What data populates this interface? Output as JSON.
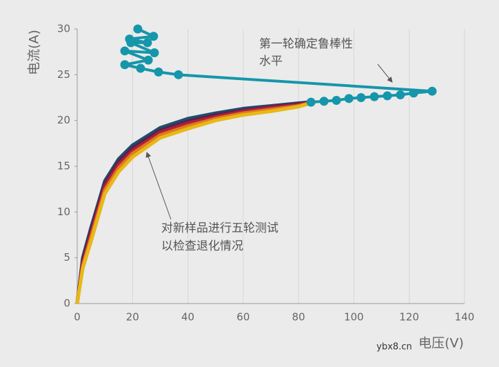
{
  "chart_data": {
    "type": "line",
    "xlabel": "电压(V)",
    "ylabel": "电流(A)",
    "xlim": [
      0,
      140
    ],
    "xticks": [
      0,
      20,
      40,
      60,
      80,
      100,
      120,
      140
    ],
    "ylim": [
      0,
      30
    ],
    "yticks": [
      0,
      5,
      10,
      15,
      20,
      25,
      30
    ],
    "grid": true,
    "annotations": [
      [
        "第一轮确定鲁棒性",
        "水平"
      ],
      [
        "对新样品进行五轮测试",
        "以检查退化情况"
      ]
    ],
    "watermark": "ybx8.cn",
    "series": [
      {
        "color": "#1d4f6e",
        "x": [
          0,
          2,
          5,
          10,
          15,
          20,
          30,
          40,
          50,
          60,
          70,
          80,
          84
        ],
        "values": [
          0,
          5,
          8.3,
          13.4,
          15.8,
          17.3,
          19.2,
          20.2,
          20.8,
          21.3,
          21.6,
          21.9,
          22
        ]
      },
      {
        "color": "#5c1f4d",
        "x": [
          0,
          2,
          5,
          10,
          15,
          20,
          30,
          40,
          50,
          60,
          70,
          80,
          84
        ],
        "values": [
          0,
          4.7,
          8.0,
          13.1,
          15.5,
          17.0,
          18.9,
          19.9,
          20.6,
          21.1,
          21.5,
          21.8,
          22
        ]
      },
      {
        "color": "#b0203a",
        "x": [
          0,
          2,
          5,
          10,
          15,
          20,
          30,
          40,
          50,
          60,
          70,
          80,
          84
        ],
        "values": [
          0,
          4.4,
          7.6,
          12.8,
          15.2,
          16.7,
          18.7,
          19.7,
          20.4,
          21.0,
          21.4,
          21.7,
          21.95
        ]
      },
      {
        "color": "#e07b1a",
        "x": [
          0,
          2,
          5,
          10,
          15,
          20,
          30,
          40,
          50,
          60,
          70,
          80,
          84
        ],
        "values": [
          0,
          4.1,
          7.2,
          12.4,
          14.8,
          16.4,
          18.4,
          19.4,
          20.2,
          20.8,
          21.2,
          21.6,
          21.9
        ]
      },
      {
        "color": "#e8b818",
        "x": [
          0,
          2,
          5,
          10,
          15,
          20,
          30,
          40,
          50,
          60,
          70,
          80,
          84
        ],
        "values": [
          0,
          3.8,
          6.8,
          12.0,
          14.4,
          16.0,
          18.1,
          19.1,
          20.0,
          20.6,
          21.0,
          21.5,
          21.85
        ]
      },
      {
        "color": "#1596aa",
        "markers": true,
        "x": [
          84.5,
          89.2,
          93.7,
          98.2,
          102.6,
          107.4,
          112.1,
          116.8,
          121.6,
          128.3,
          36.6,
          29.4,
          22.9,
          17.2,
          25.7,
          17.2,
          27.9,
          19.4,
          25.4,
          18.9,
          27.6,
          21.9
        ],
        "values": [
          22.0,
          22.1,
          22.2,
          22.4,
          22.5,
          22.6,
          22.7,
          22.8,
          23.0,
          23.2,
          25.0,
          25.3,
          25.7,
          26.1,
          26.6,
          27.6,
          27.4,
          28.5,
          28.5,
          28.9,
          29.2,
          30.0
        ]
      }
    ]
  }
}
